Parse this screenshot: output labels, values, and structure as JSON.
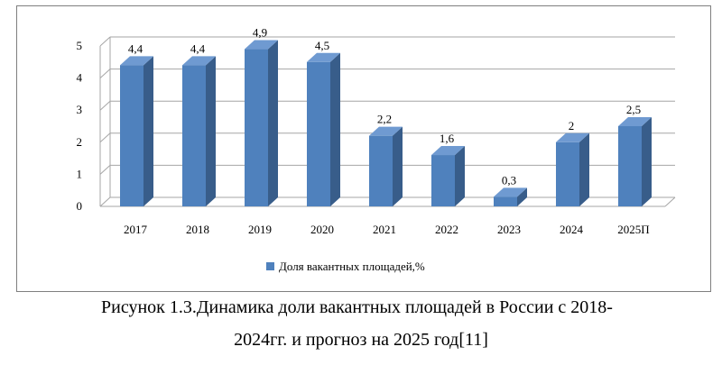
{
  "chart_data": {
    "type": "bar",
    "categories": [
      "2017",
      "2018",
      "2019",
      "2020",
      "2021",
      "2022",
      "2023",
      "2024",
      "2025П"
    ],
    "series": [
      {
        "name": "Доля вакантных площадей,%",
        "values": [
          4.4,
          4.4,
          4.9,
          4.5,
          2.2,
          1.6,
          0.3,
          2,
          2.5
        ],
        "labels": [
          "4,4",
          "4,4",
          "4,9",
          "4,5",
          "2,2",
          "1,6",
          "0,3",
          "2",
          "2,5"
        ]
      }
    ],
    "yticks": [
      "0",
      "1",
      "2",
      "3",
      "4",
      "5"
    ],
    "ylim": [
      0,
      5
    ],
    "grid": true,
    "legend_position": "bottom",
    "colors": {
      "bar_front": "#4f81bd",
      "bar_side": "#385d8a",
      "bar_top": "#6f9ad1",
      "grid": "#a6a6a6"
    }
  },
  "caption": {
    "line1": "Рисунок  1.3.Динамика доли вакантных площадей в России с 2018-",
    "line2": "2024гг. и прогноз на 2025 год[11]"
  }
}
